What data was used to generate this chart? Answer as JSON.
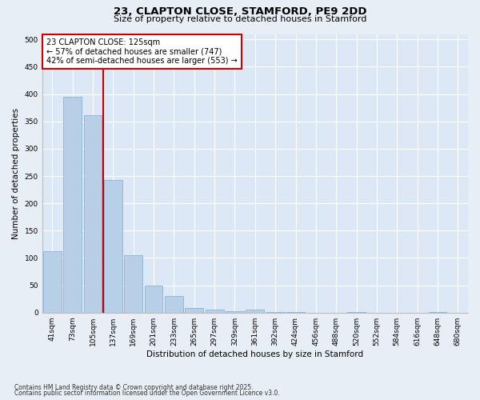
{
  "title1": "23, CLAPTON CLOSE, STAMFORD, PE9 2DD",
  "title2": "Size of property relative to detached houses in Stamford",
  "xlabel": "Distribution of detached houses by size in Stamford",
  "ylabel": "Number of detached properties",
  "footer1": "Contains HM Land Registry data © Crown copyright and database right 2025.",
  "footer2": "Contains public sector information licensed under the Open Government Licence v3.0.",
  "categories": [
    "41sqm",
    "73sqm",
    "105sqm",
    "137sqm",
    "169sqm",
    "201sqm",
    "233sqm",
    "265sqm",
    "297sqm",
    "329sqm",
    "361sqm",
    "392sqm",
    "424sqm",
    "456sqm",
    "488sqm",
    "520sqm",
    "552sqm",
    "584sqm",
    "616sqm",
    "648sqm",
    "680sqm"
  ],
  "values": [
    113,
    395,
    362,
    243,
    105,
    50,
    30,
    8,
    5,
    2,
    6,
    1,
    1,
    0,
    0,
    1,
    0,
    0,
    0,
    1,
    0
  ],
  "bar_color": "#b8cfe8",
  "bar_edge_color": "#7aadd4",
  "vline_color": "#cc0000",
  "annotation_text": "23 CLAPTON CLOSE: 125sqm\n← 57% of detached houses are smaller (747)\n42% of semi-detached houses are larger (553) →",
  "annotation_box_color": "#ffffff",
  "annotation_box_edge": "#cc0000",
  "ylim": [
    0,
    510
  ],
  "yticks": [
    0,
    50,
    100,
    150,
    200,
    250,
    300,
    350,
    400,
    450,
    500
  ],
  "background_color": "#e8eef5",
  "plot_background": "#dce8f5",
  "grid_color": "#ffffff",
  "title1_fontsize": 9.5,
  "title2_fontsize": 8.0,
  "tick_fontsize": 6.5,
  "ylabel_fontsize": 7.5,
  "xlabel_fontsize": 7.5,
  "footer_fontsize": 5.5,
  "annot_fontsize": 7.0
}
